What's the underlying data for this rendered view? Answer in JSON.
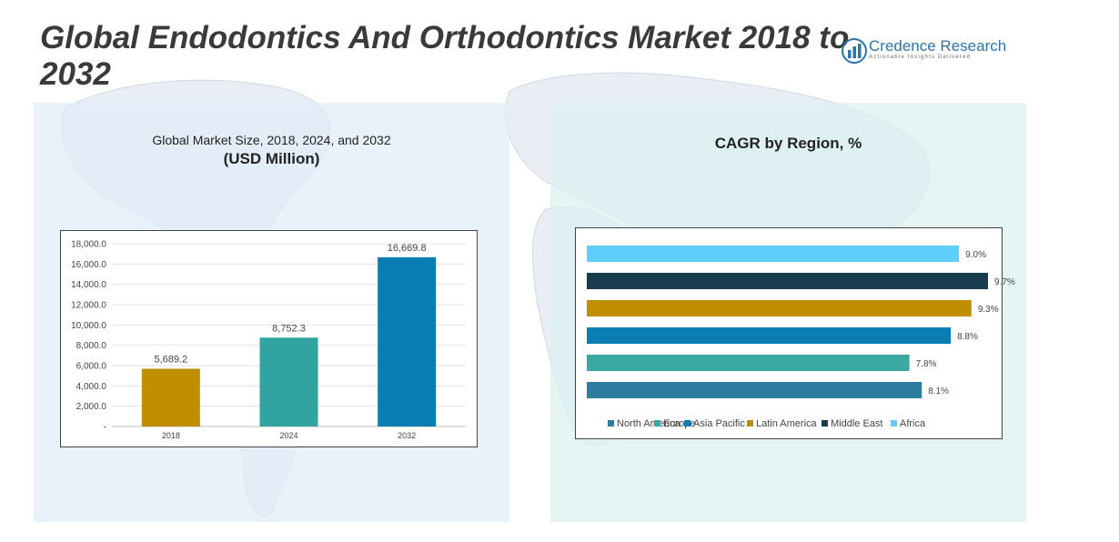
{
  "title": "Global Endodontics And Orthodontics Market 2018 to 2032",
  "logo": {
    "name": "Credence Research",
    "tagline": "Actionable Insights Delivered",
    "icon": "bar-chart-logo-icon"
  },
  "left_panel": {
    "subtitle": "Global Market Size, 2018, 2024, and 2032",
    "unit": "(USD Million)"
  },
  "right_panel": {
    "title": "CAGR by Region, %"
  },
  "colors": {
    "title": "#3a3a3a",
    "logo_blue": "#2e74a8",
    "bar_2018": "#bf8f00",
    "bar_2024": "#31a3a0",
    "bar_2032": "#0a7eb3",
    "north_america": "#2e7ca0",
    "europe": "#3aa9a2",
    "asia_pacific": "#0a7eb3",
    "latin_america": "#bf8f00",
    "middle_east": "#1a3d4d",
    "africa": "#5ecffa"
  },
  "chart_data": [
    {
      "type": "bar",
      "categories": [
        "2018",
        "2024",
        "2032"
      ],
      "values": [
        5689.2,
        8752.3,
        16669.8
      ],
      "value_labels": [
        "5,689.2",
        "8,752.3",
        "16,669.8"
      ],
      "ylim": [
        0,
        18000
      ],
      "y_ticks": [
        0,
        2000,
        4000,
        6000,
        8000,
        10000,
        12000,
        14000,
        16000,
        18000
      ],
      "y_tick_labels": [
        "-",
        "2,000.0",
        "4,000.0",
        "6,000.0",
        "8,000.0",
        "10,000.0",
        "12,000.0",
        "14,000.0",
        "16,000.0",
        "18,000.0"
      ],
      "grid": true
    },
    {
      "type": "bar",
      "orientation": "horizontal",
      "categories": [
        "Africa",
        "Middle East",
        "Latin America",
        "Asia Pacific",
        "Europe",
        "North America"
      ],
      "values": [
        9.0,
        9.7,
        9.3,
        8.8,
        7.8,
        8.1
      ],
      "value_labels": [
        "9.0%",
        "9.7%",
        "9.3%",
        "8.8%",
        "7.8%",
        "8.1%"
      ],
      "legend": [
        "North America",
        "Europe",
        "Asia Pacific",
        "Latin America",
        "Middle East",
        "Africa"
      ],
      "legend_position": "bottom"
    }
  ]
}
